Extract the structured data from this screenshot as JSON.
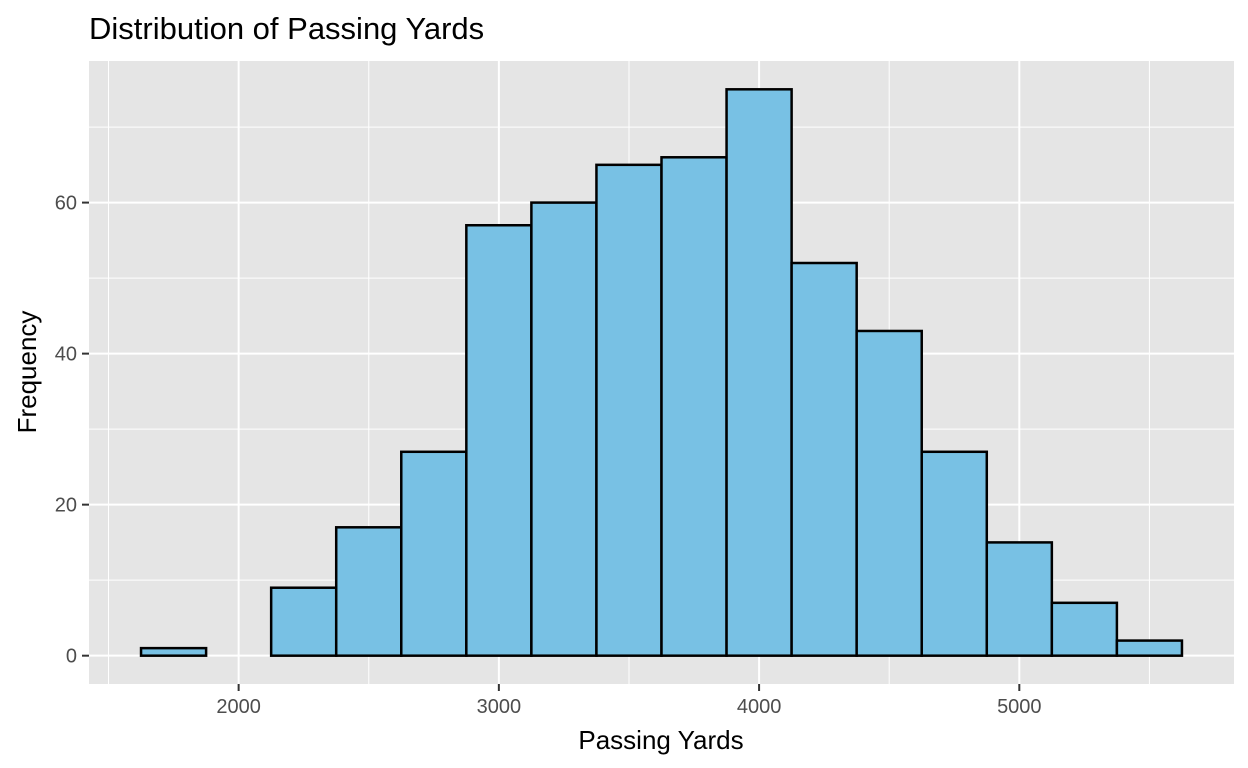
{
  "chart_data": {
    "type": "bar",
    "subtype": "histogram",
    "title": "Distribution of Passing Yards",
    "xlabel": "Passing Yards",
    "ylabel": "Frequency",
    "bins": [
      {
        "start": 1625,
        "end": 1875,
        "count": 1
      },
      {
        "start": 1875,
        "end": 2125,
        "count": 0
      },
      {
        "start": 2125,
        "end": 2375,
        "count": 9
      },
      {
        "start": 2375,
        "end": 2625,
        "count": 17
      },
      {
        "start": 2625,
        "end": 2875,
        "count": 27
      },
      {
        "start": 2875,
        "end": 3125,
        "count": 57
      },
      {
        "start": 3125,
        "end": 3375,
        "count": 60
      },
      {
        "start": 3375,
        "end": 3625,
        "count": 65
      },
      {
        "start": 3625,
        "end": 3875,
        "count": 66
      },
      {
        "start": 3875,
        "end": 4125,
        "count": 75
      },
      {
        "start": 4125,
        "end": 4375,
        "count": 52
      },
      {
        "start": 4375,
        "end": 4625,
        "count": 43
      },
      {
        "start": 4625,
        "end": 4875,
        "count": 27
      },
      {
        "start": 4875,
        "end": 5125,
        "count": 15
      },
      {
        "start": 5125,
        "end": 5375,
        "count": 7
      },
      {
        "start": 5375,
        "end": 5625,
        "count": 2
      }
    ],
    "xlim": [
      1425,
      5825
    ],
    "ylim": [
      -3.75,
      78.75
    ],
    "x_ticks": [
      2000,
      3000,
      4000,
      5000
    ],
    "y_ticks": [
      0,
      20,
      40,
      60
    ],
    "x_tick_labels": [
      "2000",
      "3000",
      "4000",
      "5000"
    ],
    "y_tick_labels": [
      "0",
      "20",
      "40",
      "60"
    ],
    "grid": true,
    "legend": "none",
    "colors": {
      "bar_fill": "#78c1e4",
      "bar_stroke": "#000000",
      "panel_background": "#e5e5e5",
      "grid": "#ffffff",
      "tick_label": "#4d4d4d",
      "tick_mark": "#333333"
    }
  }
}
